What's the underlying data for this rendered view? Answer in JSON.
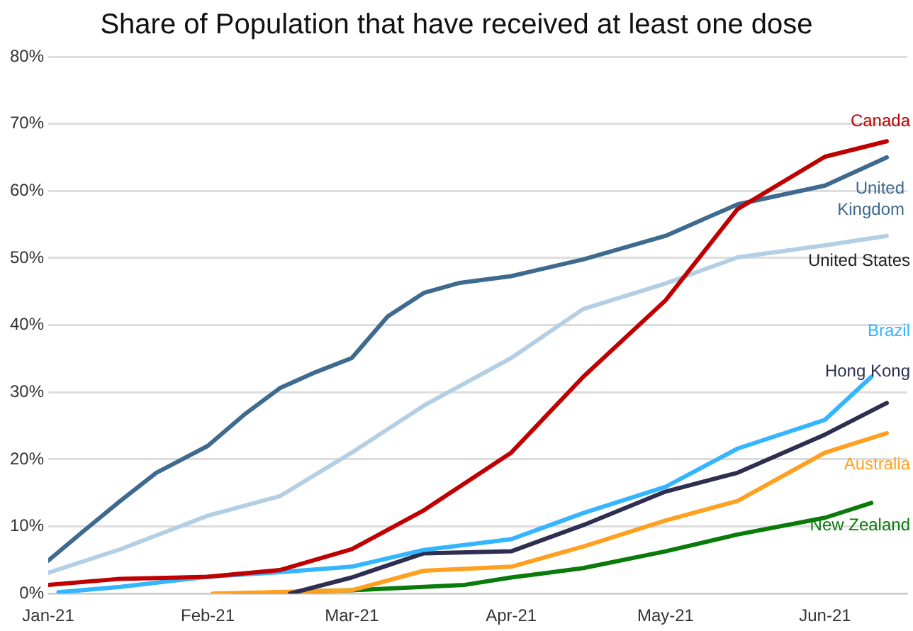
{
  "chart_data": {
    "type": "line",
    "title": "Share of Population that have received at least one dose",
    "xlim": [
      "2021-01-01",
      "2021-06-17"
    ],
    "xticks": [
      {
        "value": "2021-01-01",
        "label": "Jan-21"
      },
      {
        "value": "2021-02-01",
        "label": "Feb-21"
      },
      {
        "value": "2021-03-01",
        "label": "Mar-21"
      },
      {
        "value": "2021-04-01",
        "label": "Apr-21"
      },
      {
        "value": "2021-05-01",
        "label": "May-21"
      },
      {
        "value": "2021-06-01",
        "label": "Jun-21"
      }
    ],
    "ylim": [
      0,
      80
    ],
    "yticks": [
      {
        "value": 0,
        "label": "0%"
      },
      {
        "value": 10,
        "label": "10%"
      },
      {
        "value": 20,
        "label": "20%"
      },
      {
        "value": 30,
        "label": "30%"
      },
      {
        "value": 40,
        "label": "40%"
      },
      {
        "value": 50,
        "label": "50%"
      },
      {
        "value": 60,
        "label": "60%"
      },
      {
        "value": 70,
        "label": "70%"
      },
      {
        "value": 80,
        "label": "80%"
      }
    ],
    "grid": "y",
    "legend": false,
    "marker": "none",
    "line_style": "solid",
    "series": [
      {
        "name": "Canada",
        "color": "#c00000",
        "x": [
          "2021-01-01",
          "2021-01-15",
          "2021-02-01",
          "2021-02-15",
          "2021-03-01",
          "2021-03-15",
          "2021-04-01",
          "2021-04-15",
          "2021-05-01",
          "2021-05-15",
          "2021-06-01",
          "2021-06-13"
        ],
        "values": [
          1.3,
          2.2,
          2.5,
          3.5,
          6.6,
          12.4,
          21,
          32.3,
          43.7,
          57.3,
          65.1,
          67.4
        ]
      },
      {
        "name": "United Kingdom",
        "color": "#3d6a8e",
        "x": [
          "2021-01-01",
          "2021-01-08",
          "2021-01-15",
          "2021-01-22",
          "2021-02-01",
          "2021-02-08",
          "2021-02-15",
          "2021-02-22",
          "2021-03-01",
          "2021-03-08",
          "2021-03-15",
          "2021-03-22",
          "2021-04-01",
          "2021-04-15",
          "2021-05-01",
          "2021-05-15",
          "2021-06-01",
          "2021-06-13"
        ],
        "values": [
          4.9,
          9.4,
          13.8,
          18,
          22,
          26.6,
          30.6,
          33,
          35.1,
          41.3,
          44.8,
          46.3,
          47.3,
          49.8,
          53.3,
          58,
          60.8,
          65
        ]
      },
      {
        "name": "United States",
        "color": "#b4cfe4",
        "x": [
          "2021-01-01",
          "2021-01-15",
          "2021-02-01",
          "2021-02-15",
          "2021-03-01",
          "2021-03-15",
          "2021-04-01",
          "2021-04-15",
          "2021-05-01",
          "2021-05-15",
          "2021-06-01",
          "2021-06-13"
        ],
        "values": [
          3.1,
          6.6,
          11.6,
          14.5,
          21,
          28,
          35.1,
          42.4,
          46.2,
          50.1,
          51.9,
          53.3
        ]
      },
      {
        "name": "Brazil",
        "color": "#33b5ff",
        "x": [
          "2021-01-03",
          "2021-01-15",
          "2021-02-01",
          "2021-02-15",
          "2021-03-01",
          "2021-03-15",
          "2021-04-01",
          "2021-04-15",
          "2021-05-01",
          "2021-05-15",
          "2021-06-01",
          "2021-06-10"
        ],
        "values": [
          0.2,
          1,
          2.5,
          3.2,
          4,
          6.5,
          8.1,
          12,
          15.9,
          21.6,
          25.9,
          32.3
        ]
      },
      {
        "name": "Hong Kong",
        "color": "#2e2e50",
        "x": [
          "2021-02-17",
          "2021-03-01",
          "2021-03-15",
          "2021-04-01",
          "2021-04-15",
          "2021-05-01",
          "2021-05-15",
          "2021-06-01",
          "2021-06-13"
        ],
        "values": [
          0,
          2.4,
          6,
          6.3,
          10.2,
          15.2,
          18,
          23.7,
          28.4
        ]
      },
      {
        "name": "Australia",
        "color": "#ffa020",
        "x": [
          "2021-02-02",
          "2021-03-01",
          "2021-03-15",
          "2021-04-01",
          "2021-04-15",
          "2021-05-01",
          "2021-05-15",
          "2021-06-01",
          "2021-06-13"
        ],
        "values": [
          0,
          0.5,
          3.4,
          4,
          7,
          10.9,
          13.8,
          21,
          23.9
        ]
      },
      {
        "name": "New Zealand",
        "color": "#0a7a0a",
        "x": [
          "2021-02-06",
          "2021-03-01",
          "2021-03-23",
          "2021-04-01",
          "2021-04-15",
          "2021-05-01",
          "2021-05-15",
          "2021-06-01",
          "2021-06-10"
        ],
        "values": [
          0,
          0.5,
          1.3,
          2.4,
          3.8,
          6.3,
          8.8,
          11.3,
          13.5
        ]
      }
    ]
  }
}
